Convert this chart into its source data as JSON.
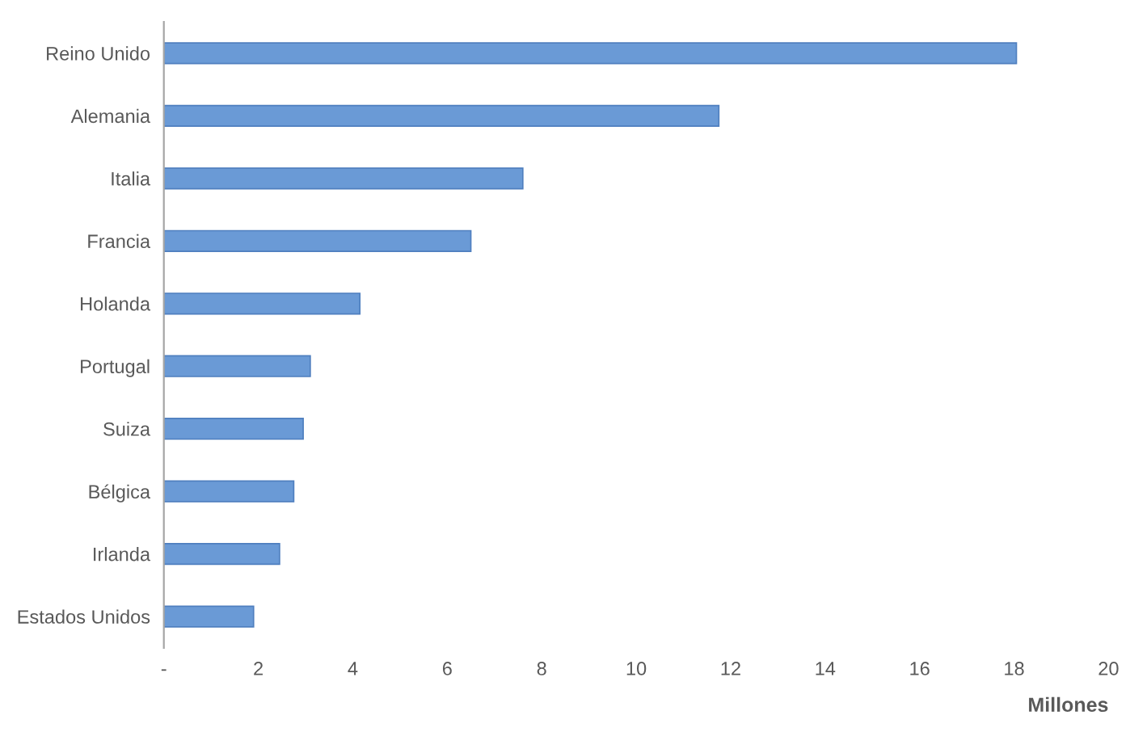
{
  "chart_data": {
    "type": "bar",
    "orientation": "horizontal",
    "xlabel": "Millones",
    "categories": [
      "Reino Unido",
      "Alemania",
      "Italia",
      "Francia",
      "Holanda",
      "Portugal",
      "Suiza",
      "Bélgica",
      "Irlanda",
      "Estados Unidos"
    ],
    "values": [
      18.05,
      11.75,
      7.6,
      6.5,
      4.15,
      3.1,
      2.95,
      2.75,
      2.45,
      1.9
    ],
    "color": "#6a9ad6",
    "xlim": [
      0,
      20
    ],
    "xticks": [
      {
        "value": 0,
        "label": "-"
      },
      2,
      4,
      6,
      8,
      10,
      12,
      14,
      16,
      18,
      20
    ],
    "grid": false,
    "legend": false
  }
}
